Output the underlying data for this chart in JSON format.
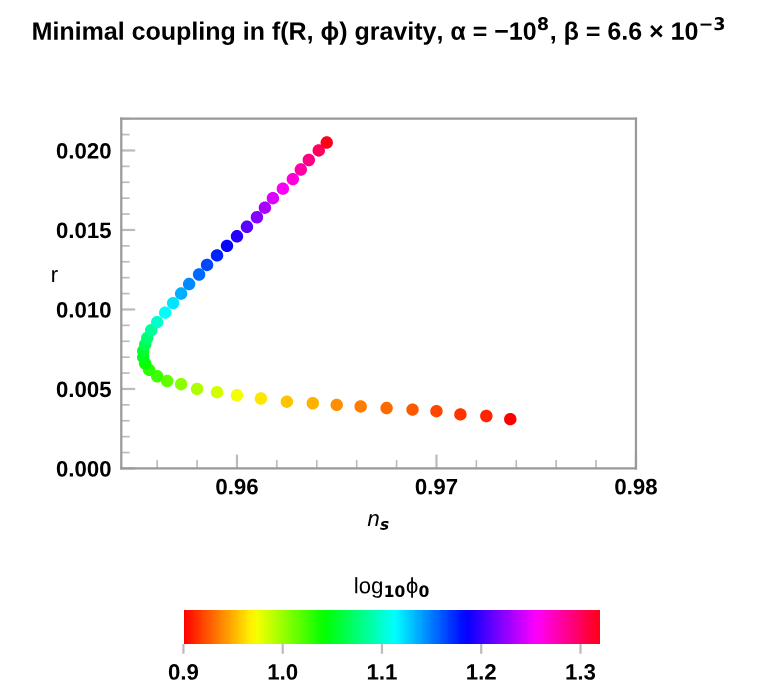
{
  "chart_data": {
    "type": "scatter",
    "title": "Minimal coupling in f(R, ϕ) gravity, α = −10$^{8}$, β = 6.6 × 10$^{−3}$",
    "xlabel": "n$_{s}$",
    "ylabel": "r",
    "clabel": "log$_{10}$ϕ$_{0}$",
    "series": [
      {
        "x": [
          0.9737,
          0.9725,
          0.9712,
          0.97,
          0.9688,
          0.9675,
          0.9662,
          0.965,
          0.9638,
          0.9625,
          0.9612,
          0.96,
          0.959,
          0.958,
          0.9572,
          0.9565,
          0.956,
          0.9556,
          0.9554,
          0.9553,
          0.9553,
          0.9554,
          0.9555,
          0.9557,
          0.956,
          0.9564,
          0.9568,
          0.9572,
          0.9576,
          0.9581,
          0.9585,
          0.959,
          0.9595,
          0.96,
          0.9605,
          0.961,
          0.9614,
          0.9618,
          0.9623,
          0.9628,
          0.9632,
          0.9636,
          0.9641,
          0.9645
        ],
        "values": [
          0.0031,
          0.0033,
          0.0034,
          0.0036,
          0.0037,
          0.0038,
          0.0039,
          0.004,
          0.0041,
          0.0042,
          0.0044,
          0.0046,
          0.0048,
          0.005,
          0.0053,
          0.0055,
          0.0058,
          0.0062,
          0.0066,
          0.007,
          0.0074,
          0.0078,
          0.0082,
          0.0087,
          0.0092,
          0.0098,
          0.0104,
          0.011,
          0.0116,
          0.0122,
          0.0128,
          0.0134,
          0.014,
          0.0146,
          0.0152,
          0.0158,
          0.0164,
          0.017,
          0.0176,
          0.0182,
          0.0188,
          0.0194,
          0.02,
          0.0205
        ],
        "cvalues": [
          0.9,
          0.91,
          0.915,
          0.92,
          0.925,
          0.93,
          0.935,
          0.94,
          0.95,
          0.955,
          0.965,
          0.975,
          0.985,
          0.995,
          1.005,
          1.015,
          1.025,
          1.03,
          1.04,
          1.05,
          1.055,
          1.065,
          1.075,
          1.085,
          1.1,
          1.11,
          1.12,
          1.135,
          1.145,
          1.155,
          1.165,
          1.175,
          1.185,
          1.195,
          1.21,
          1.22,
          1.23,
          1.245,
          1.255,
          1.265,
          1.28,
          1.29,
          1.3,
          1.32
        ]
      }
    ],
    "xlim": [
      0.9542,
      0.98
    ],
    "xticks": [
      {
        "value": 0.96,
        "label": "0.96"
      },
      {
        "value": 0.97,
        "label": "0.97"
      },
      {
        "value": 0.98,
        "label": "0.98"
      }
    ],
    "ylim": [
      0,
      0.022
    ],
    "yticks": [
      {
        "value": 0,
        "label": "0.000"
      },
      {
        "value": 0.005,
        "label": "0.005"
      },
      {
        "value": 0.01,
        "label": "0.010"
      },
      {
        "value": 0.015,
        "label": "0.015"
      },
      {
        "value": 0.02,
        "label": "0.020"
      }
    ],
    "clim": [
      0.9,
      1.32
    ],
    "cticks": [
      {
        "value": 0.9,
        "label": "0.9"
      },
      {
        "value": 1.0,
        "label": "1.0"
      },
      {
        "value": 1.1,
        "label": "1.1"
      },
      {
        "value": 1.2,
        "label": "1.2"
      },
      {
        "value": 1.3,
        "label": "1.3"
      }
    ],
    "grid": false,
    "marker": "circle"
  }
}
